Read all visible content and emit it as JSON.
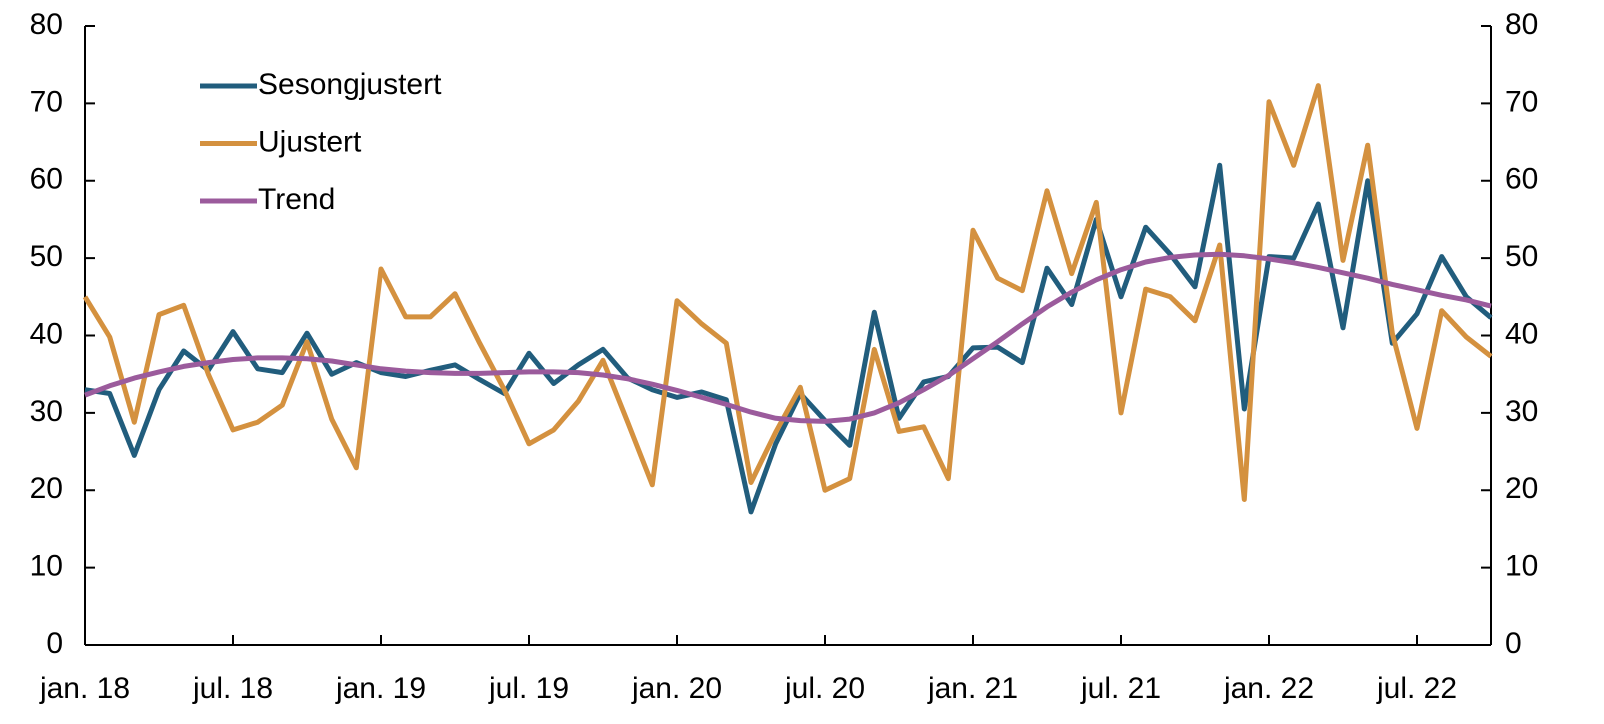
{
  "chart_data": {
    "type": "line",
    "categories": [
      "jan. 18",
      null,
      null,
      null,
      null,
      null,
      "jul. 18",
      null,
      null,
      null,
      null,
      null,
      "jan. 19",
      null,
      null,
      null,
      null,
      null,
      "jul. 19",
      null,
      null,
      null,
      null,
      null,
      "jan. 20",
      null,
      null,
      null,
      null,
      null,
      "jul. 20",
      null,
      null,
      null,
      null,
      null,
      "jan. 21",
      null,
      null,
      null,
      null,
      null,
      "jul. 21",
      null,
      null,
      null,
      null,
      null,
      "jan. 22",
      null,
      null,
      null,
      null,
      null,
      "jul. 22",
      null,
      null,
      null
    ],
    "series": [
      {
        "name": "Sesongjustert",
        "color": "#215d7d",
        "values": [
          33,
          32.5,
          24.5,
          33,
          38,
          35.5,
          40.5,
          35.7,
          35.2,
          40.3,
          35,
          36.5,
          35.2,
          34.7,
          35.5,
          36.2,
          34.3,
          32.5,
          37.7,
          33.8,
          36.2,
          38.2,
          34.5,
          33,
          32,
          32.7,
          31.7,
          17.2,
          26,
          32.5,
          29,
          25.8,
          43,
          29.3,
          34,
          34.7,
          38.4,
          38.5,
          36.5,
          48.7,
          44,
          55,
          45,
          54,
          50.5,
          46.3,
          62,
          30.5,
          50.2,
          50,
          57,
          41,
          60,
          39,
          42.8,
          50.2,
          45,
          42.3
        ]
      },
      {
        "name": "Ujustert",
        "color": "#d4913f",
        "values": [
          45,
          39.8,
          28.8,
          42.7,
          43.9,
          35,
          27.8,
          28.8,
          31,
          39.2,
          29.2,
          22.9,
          48.6,
          42.4,
          42.4,
          45.4,
          39,
          33,
          26,
          27.8,
          31.5,
          36.8,
          28.8,
          20.7,
          44.5,
          41.5,
          39,
          21,
          27.5,
          33.3,
          20,
          21.5,
          38.2,
          27.6,
          28.2,
          21.5,
          53.6,
          47.4,
          45.8,
          58.7,
          48,
          57.2,
          30,
          46,
          45,
          41.9,
          51.7,
          18.8,
          70.2,
          62,
          72.3,
          49.7,
          64.6,
          40.3,
          28,
          43.2,
          39.8,
          37.3
        ]
      },
      {
        "name": "Trend",
        "color": "#9b5b9c",
        "values": [
          32.3,
          33.5,
          34.5,
          35.3,
          36,
          36.5,
          36.9,
          37.1,
          37.1,
          37,
          36.7,
          36.2,
          35.7,
          35.4,
          35.2,
          35.1,
          35.1,
          35.2,
          35.3,
          35.3,
          35.2,
          34.9,
          34.4,
          33.7,
          32.9,
          32,
          31.1,
          30.1,
          29.3,
          29,
          28.9,
          29.2,
          30,
          31.3,
          33,
          34.8,
          37,
          39.2,
          41.5,
          43.7,
          45.6,
          47.2,
          48.5,
          49.5,
          50.1,
          50.4,
          50.5,
          50.3,
          49.9,
          49.4,
          48.8,
          48.1,
          47.4,
          46.6,
          45.9,
          45.2,
          44.6,
          43.8
        ]
      }
    ],
    "ylim": [
      0,
      80
    ],
    "yticks": [
      0,
      10,
      20,
      30,
      40,
      50,
      60,
      70,
      80
    ],
    "y2lim": [
      0,
      80
    ],
    "y2ticks": [
      0,
      10,
      20,
      30,
      40,
      50,
      60,
      70,
      80
    ],
    "grid": false,
    "legend": "upper left"
  }
}
